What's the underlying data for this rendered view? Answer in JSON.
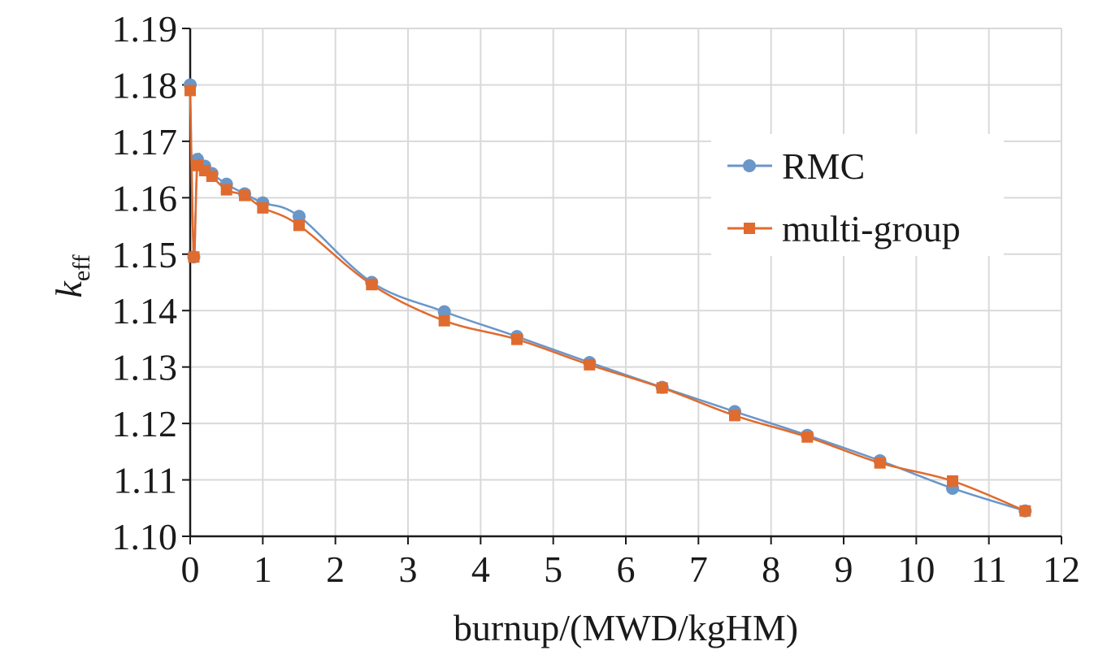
{
  "chart_data": {
    "type": "line",
    "xlabel": "burnup/(MWD/kgHM)",
    "ylabel": {
      "main": "k",
      "sub": "eff"
    },
    "xlim": [
      0,
      12
    ],
    "ylim": [
      1.1,
      1.19
    ],
    "x_ticks": [
      "0",
      "1",
      "2",
      "3",
      "4",
      "5",
      "6",
      "7",
      "8",
      "9",
      "10",
      "11",
      "12"
    ],
    "y_ticks": [
      "1.10",
      "1.11",
      "1.12",
      "1.13",
      "1.14",
      "1.15",
      "1.16",
      "1.17",
      "1.18",
      "1.19"
    ],
    "grid": true,
    "legend_position": "right",
    "series": [
      {
        "name": "RMC",
        "color": "#6a96c8",
        "marker": "circle",
        "points": [
          [
            0,
            1.18
          ],
          [
            0.05,
            1.1495
          ],
          [
            0.1,
            1.1668
          ],
          [
            0.2,
            1.1656
          ],
          [
            0.3,
            1.1643
          ],
          [
            0.5,
            1.1624
          ],
          [
            0.75,
            1.1607
          ],
          [
            1.0,
            1.1591
          ],
          [
            1.5,
            1.1567
          ],
          [
            2.5,
            1.145
          ],
          [
            3.5,
            1.1398
          ],
          [
            4.5,
            1.1354
          ],
          [
            5.5,
            1.1308
          ],
          [
            6.5,
            1.1264
          ],
          [
            7.5,
            1.1221
          ],
          [
            8.5,
            1.1179
          ],
          [
            9.5,
            1.1134
          ],
          [
            10.5,
            1.1085
          ],
          [
            11.5,
            1.1045
          ]
        ]
      },
      {
        "name": "multi-group",
        "color": "#e06b2e",
        "marker": "square",
        "points": [
          [
            0,
            1.179
          ],
          [
            0.05,
            1.1495
          ],
          [
            0.1,
            1.1657
          ],
          [
            0.2,
            1.1648
          ],
          [
            0.3,
            1.1638
          ],
          [
            0.5,
            1.1614
          ],
          [
            0.75,
            1.1604
          ],
          [
            1.0,
            1.1582
          ],
          [
            1.5,
            1.1551
          ],
          [
            2.5,
            1.1446
          ],
          [
            3.5,
            1.1382
          ],
          [
            4.5,
            1.1349
          ],
          [
            5.5,
            1.1304
          ],
          [
            6.5,
            1.1263
          ],
          [
            7.5,
            1.1214
          ],
          [
            8.5,
            1.1176
          ],
          [
            9.5,
            1.113
          ],
          [
            10.5,
            1.1098
          ],
          [
            11.5,
            1.1045
          ]
        ]
      }
    ]
  }
}
